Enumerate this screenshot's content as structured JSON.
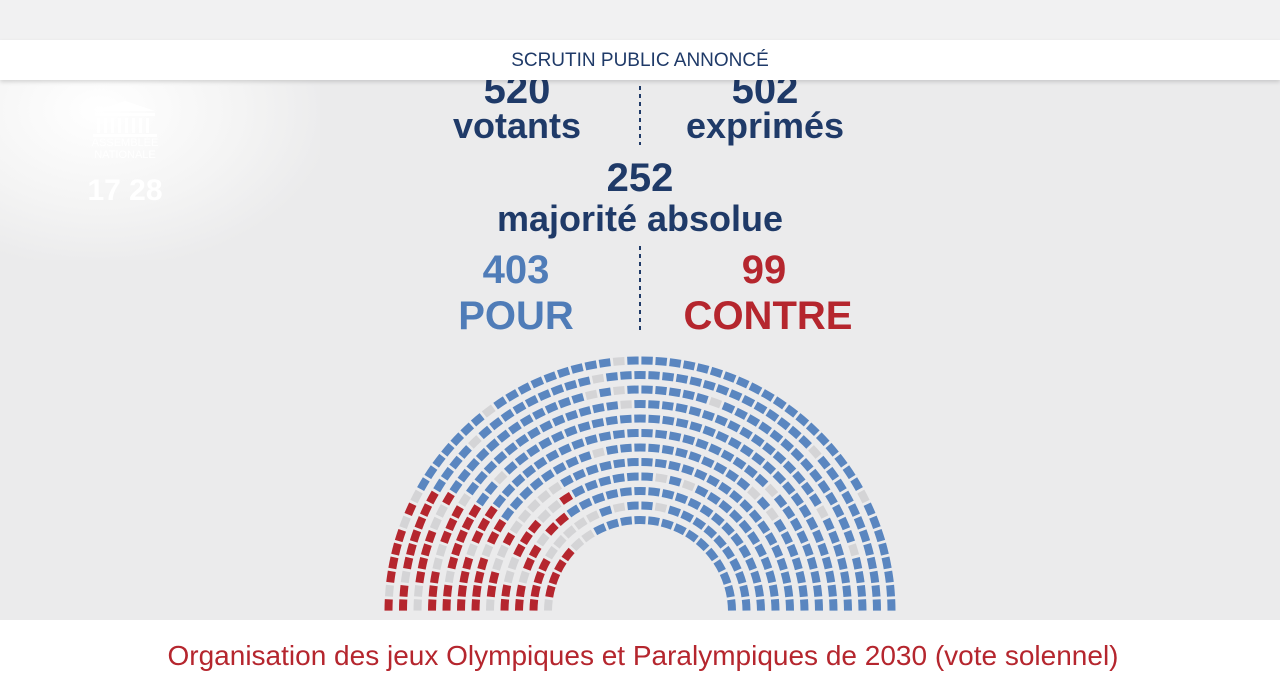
{
  "header": {
    "title": "SCRUTIN PUBLIC ANNONCÉ"
  },
  "logo": {
    "line1": "ASSEMBLÉE",
    "line2": "NATIONALE",
    "time": "17 28"
  },
  "results": {
    "votants": {
      "value": "520",
      "label": "votants"
    },
    "exprimes": {
      "value": "502",
      "label": "exprimés"
    },
    "majorite": {
      "value": "252",
      "label": "majorité absolue"
    },
    "pour": {
      "value": "403",
      "label": "POUR"
    },
    "contre": {
      "value": "99",
      "label": "CONTRE"
    }
  },
  "footer": {
    "title": "Organisation des jeux Olympiques et Paralympiques de 2030 (vote solennel)"
  }
}
